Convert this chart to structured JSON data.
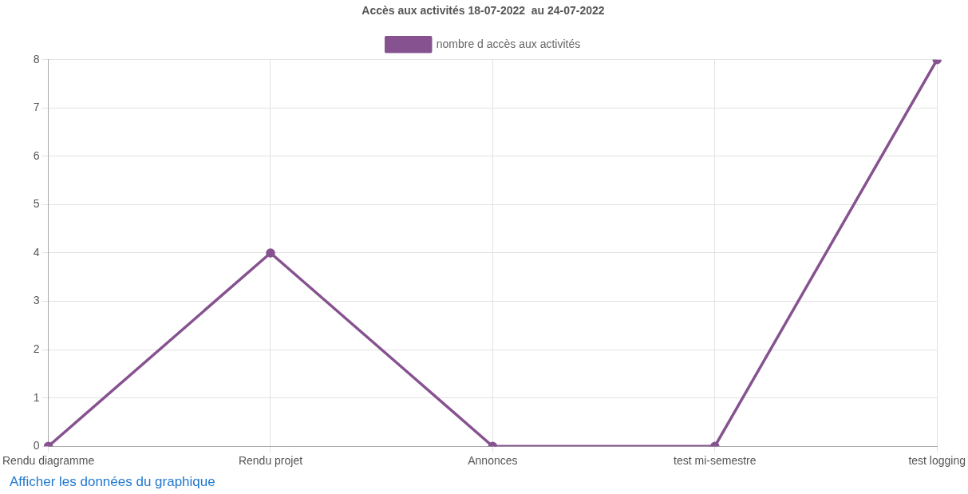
{
  "chart_data": {
    "type": "line",
    "title": "Accès aux activités 18-07-2022  au 24-07-2022",
    "categories": [
      "Rendu diagramme",
      "Rendu projet",
      "Annonces",
      "test mi-semestre",
      "test logging"
    ],
    "series": [
      {
        "name": "nombre d accès aux activités",
        "color": "#86528f",
        "values": [
          0,
          4,
          0,
          0,
          8
        ]
      }
    ],
    "ylim": [
      0,
      8
    ],
    "yticks": [
      0,
      1,
      2,
      3,
      4,
      5,
      6,
      7,
      8
    ],
    "grid": true,
    "legend": "top",
    "marker": "circle",
    "line_style": "solid",
    "annotations": [
      "Afficher les données du graphique"
    ]
  }
}
